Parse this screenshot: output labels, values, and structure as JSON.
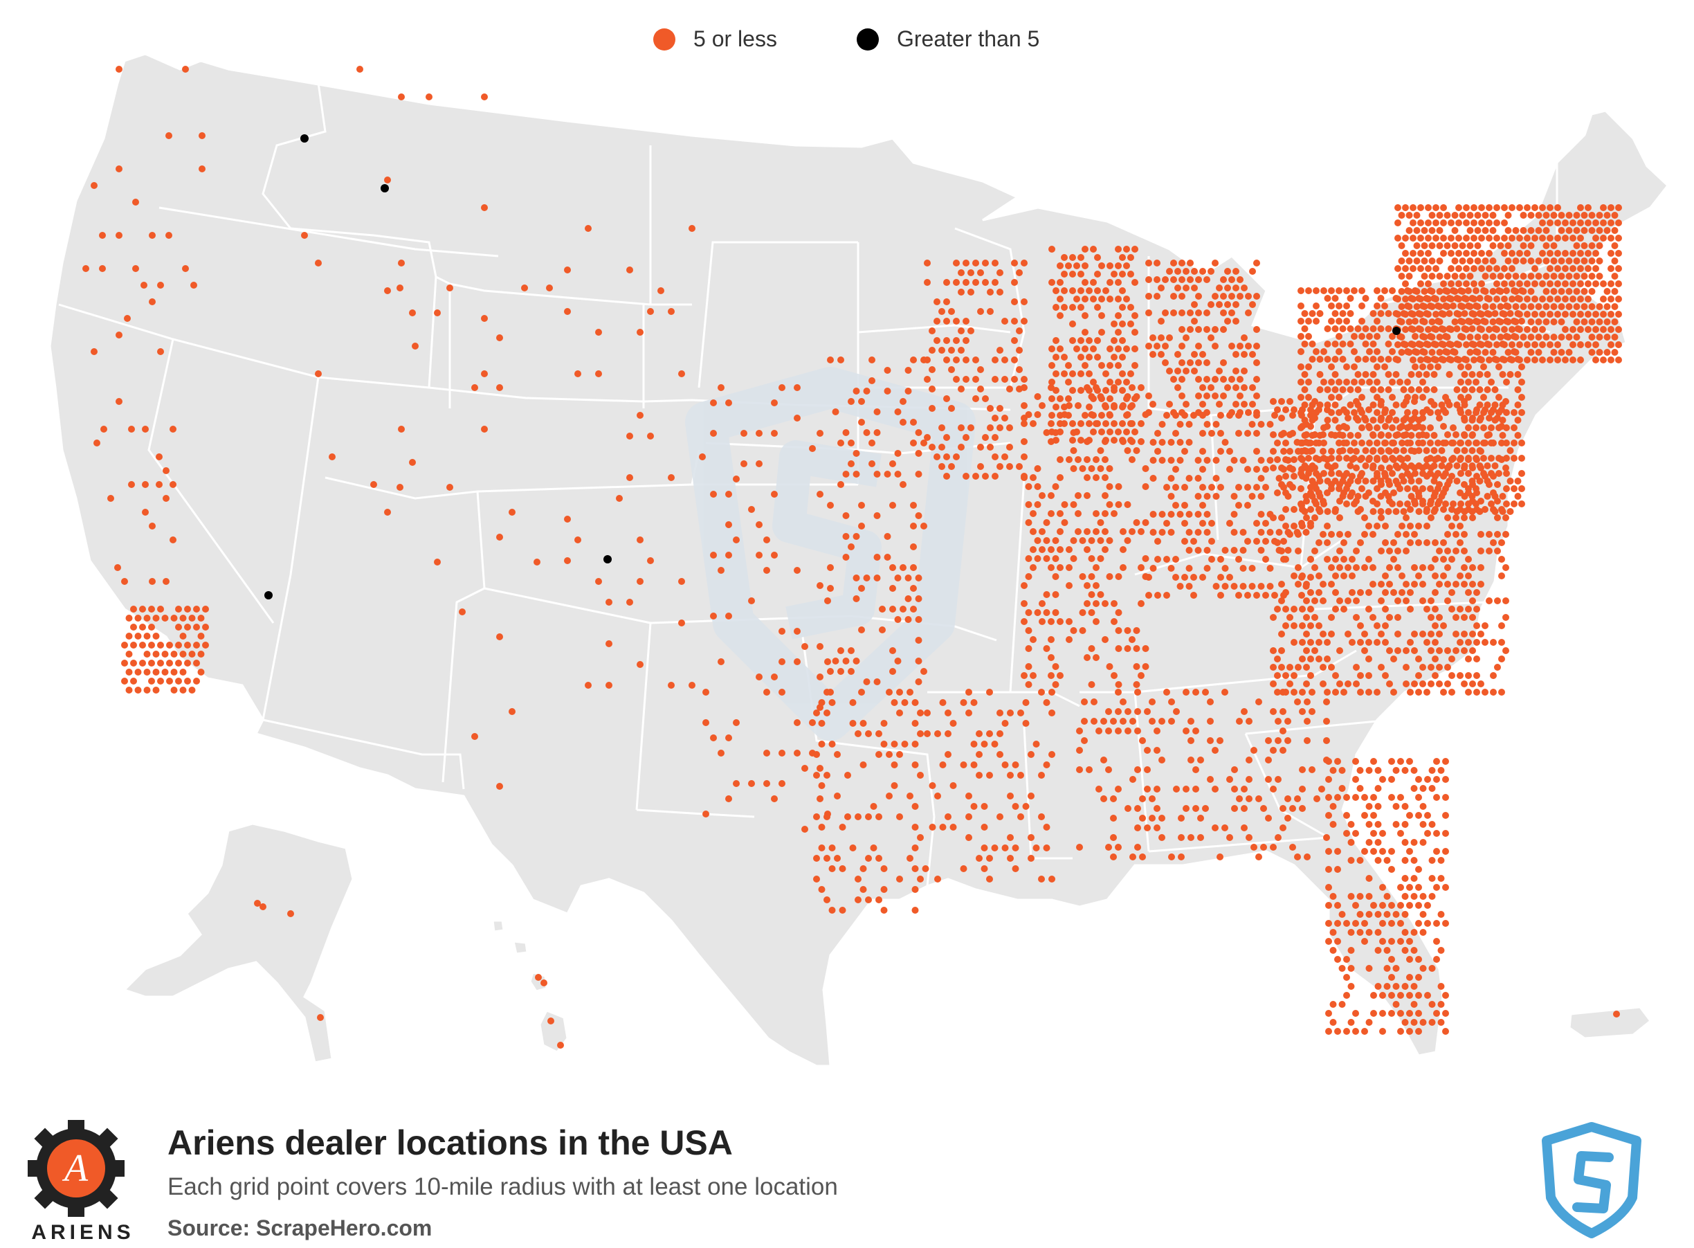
{
  "legend": {
    "small_label": "5 or less",
    "large_label": "Greater than 5",
    "small_color": "#f05a28",
    "large_color": "#000000"
  },
  "map": {
    "land_color": "#e6e6e6",
    "border_color": "#ffffff",
    "watermark_icon": "scrapehero-shield-icon"
  },
  "footer": {
    "brand_name": "ARIENS",
    "logo_letter": "A",
    "title": "Ariens dealer locations in the USA",
    "subtitle": "Each grid point covers 10-mile radius with at least one location",
    "source": "Source: ScrapeHero.com",
    "shield_color": "#4aa3d8",
    "logo_orange": "#f05a28"
  }
}
